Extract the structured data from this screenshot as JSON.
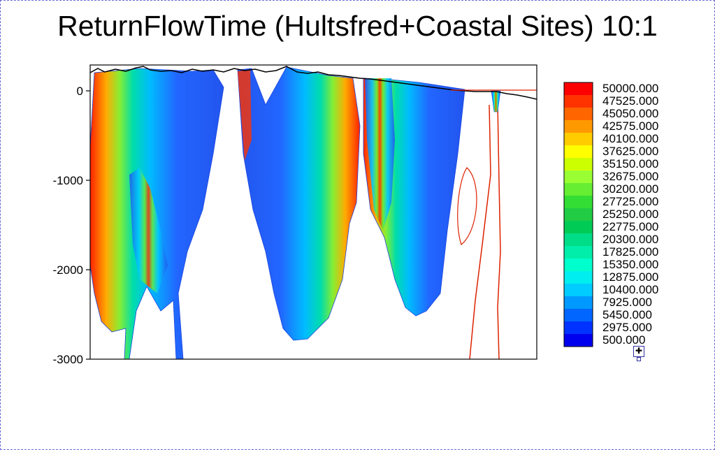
{
  "chart_data": {
    "type": "heatmap",
    "title": "ReturnFlowTime (Hultsfred+Coastal Sites) 10:1",
    "xlabel": "",
    "ylabel": "",
    "ylim": [
      -3000,
      280
    ],
    "y_ticks": [
      0,
      -1000,
      -2000,
      -3000
    ],
    "y_tick_labels": [
      "0",
      "-1000",
      "-2000",
      "-3000"
    ],
    "grid": false,
    "legend": {
      "placement": "right",
      "levels": [
        "50000.000",
        "47525.000",
        "45050.000",
        "42575.000",
        "40100.000",
        "37625.000",
        "35150.000",
        "32675.000",
        "30200.000",
        "27725.000",
        "25250.000",
        "22775.000",
        "20300.000",
        "17825.000",
        "15350.000",
        "12875.000",
        "10400.000",
        "7925.000",
        "5450.000",
        "2975.000",
        "500.000"
      ],
      "colors": [
        "#ff0000",
        "#ff3300",
        "#ff6600",
        "#ff9900",
        "#ffcc00",
        "#ffff00",
        "#ccff00",
        "#99ff33",
        "#66ee33",
        "#33dd33",
        "#22cc44",
        "#00cc55",
        "#00dd88",
        "#00eeaa",
        "#00ffcc",
        "#00eeee",
        "#00ccff",
        "#0099ff",
        "#0066ff",
        "#0033ff",
        "#0000ee"
      ]
    }
  }
}
